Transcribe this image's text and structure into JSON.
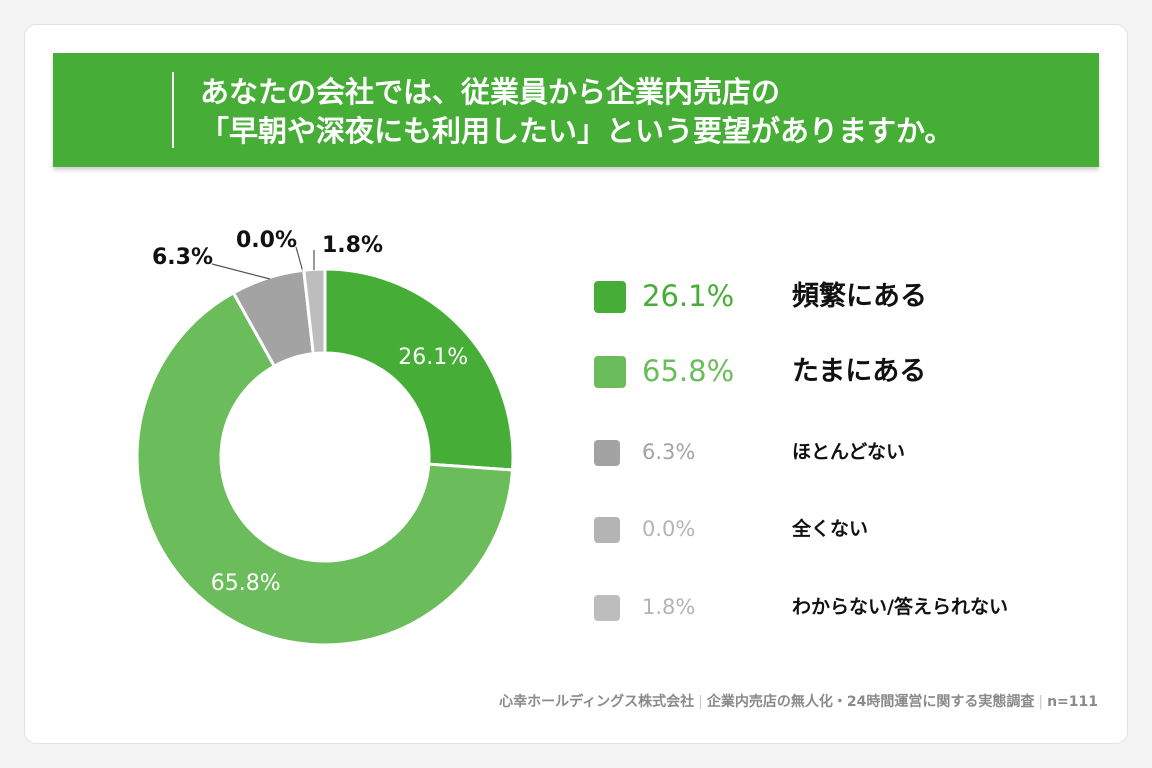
{
  "title": {
    "line1": "あなたの会社では、従業員から企業内売店の",
    "line2": "「早朝や深夜にも利用したい」という要望がありますか。"
  },
  "chart_data": {
    "type": "pie",
    "style": "donut",
    "legend_position": "right",
    "slices": [
      {
        "label": "頻繁にある",
        "value": 26.1,
        "value_label": "26.1%",
        "color": "#46ae36",
        "label_color": "#46ae36",
        "emphasis": "big",
        "label_placement": "inside"
      },
      {
        "label": "たまにある",
        "value": 65.8,
        "value_label": "65.8%",
        "color": "#6abd5a",
        "label_color": "#6abd5a",
        "emphasis": "big",
        "label_placement": "inside"
      },
      {
        "label": "ほとんどない",
        "value": 6.3,
        "value_label": "6.3%",
        "color": "#a3a3a3",
        "label_color": "#a3a3a3",
        "emphasis": "small",
        "label_placement": "outside"
      },
      {
        "label": "全くない",
        "value": 0.0,
        "value_label": "0.0%",
        "color": "#b4b4b4",
        "label_color": "#b4b4b4",
        "emphasis": "small",
        "label_placement": "outside"
      },
      {
        "label": "わからない/答えられない",
        "value": 1.8,
        "value_label": "1.8%",
        "color": "#bdbdbd",
        "label_color": "#b4b4b4",
        "emphasis": "small",
        "label_placement": "outside"
      }
    ]
  },
  "footer": {
    "company": "心幸ホールディングス株式会社",
    "survey": "企業内売店の無人化・24時間運営に関する実態調査",
    "sample": "n=111"
  }
}
